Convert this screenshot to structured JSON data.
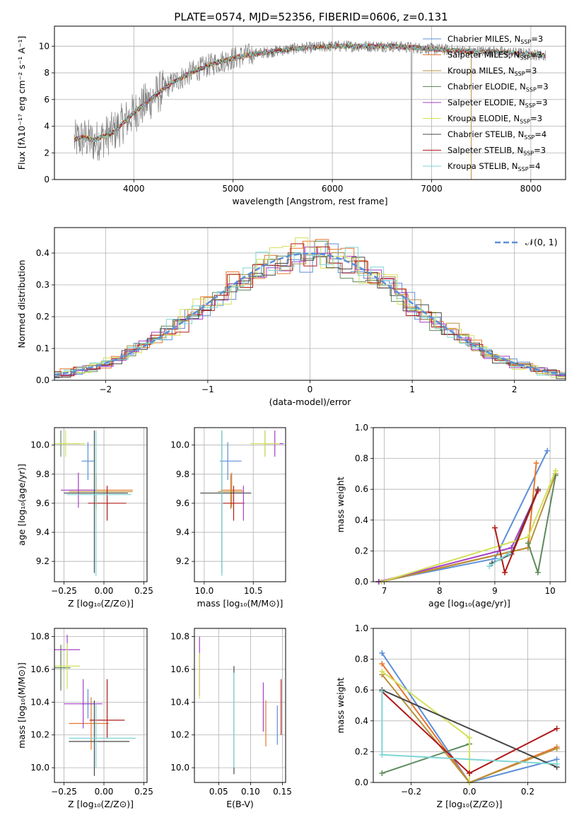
{
  "figure_title": "PLATE=0574, MJD=52356, FIBERID=0606, z=0.131",
  "colors": {
    "chabrier_miles": "#5b8fd8",
    "salpeter_miles": "#e6772e",
    "kroupa_miles": "#b8923a",
    "chabrier_elodie": "#5d8a5d",
    "salpeter_elodie": "#a53dc7",
    "kroupa_elodie": "#d4e05a",
    "chabrier_stelib": "#474747",
    "salpeter_stelib": "#b01a1a",
    "kroupa_stelib": "#7fd6d6",
    "data": "#7f7f7f",
    "gauss": "#5b8fd8",
    "grid": "#b0b0b0"
  },
  "chart_data": [
    {
      "id": "spectrum",
      "type": "line",
      "xlabel": "wavelength [Angstrom, rest frame]",
      "ylabel": "Flux [fλ10⁻¹⁷ erg cm⁻² s⁻¹ A⁻¹]",
      "xlim": [
        3200,
        8350
      ],
      "ylim": [
        0,
        11.5
      ],
      "xticks": [
        "4000",
        "5000",
        "6000",
        "7000",
        "8000"
      ],
      "yticks": [
        "0",
        "2",
        "4",
        "6",
        "8",
        "10"
      ],
      "legend_position": "top-right",
      "legend": [
        "Chabrier MILES, N_SSP=3",
        "Salpeter MILES, N_SSP=3",
        "Kroupa MILES, N_SSP=3",
        "Chabrier ELODIE, N_SSP=3",
        "Salpeter ELODIE, N_SSP=3",
        "Kroupa ELODIE, N_SSP=3",
        "Chabrier STELIB, N_SSP=4",
        "Salpeter STELIB, N_SSP=3",
        "Kroupa STELIB, N_SSP=4"
      ],
      "continuum": [
        [
          3400,
          2.9
        ],
        [
          3500,
          3.1
        ],
        [
          3600,
          2.8
        ],
        [
          3700,
          3.2
        ],
        [
          3800,
          3.6
        ],
        [
          3900,
          4.3
        ],
        [
          4000,
          5.0
        ],
        [
          4100,
          5.6
        ],
        [
          4200,
          6.2
        ],
        [
          4300,
          6.8
        ],
        [
          4400,
          7.3
        ],
        [
          4500,
          7.7
        ],
        [
          4600,
          8.1
        ],
        [
          4700,
          8.4
        ],
        [
          4800,
          8.7
        ],
        [
          4900,
          8.9
        ],
        [
          5000,
          9.1
        ],
        [
          5200,
          9.4
        ],
        [
          5400,
          9.6
        ],
        [
          5600,
          9.8
        ],
        [
          5800,
          9.9
        ],
        [
          6000,
          10.0
        ],
        [
          6200,
          10.0
        ],
        [
          6400,
          10.0
        ],
        [
          6600,
          10.0
        ],
        [
          6800,
          9.9
        ],
        [
          7000,
          9.8
        ],
        [
          7200,
          9.7
        ],
        [
          7400,
          9.6
        ],
        [
          7600,
          9.6
        ],
        [
          7800,
          9.5
        ],
        [
          8000,
          9.4
        ],
        [
          8150,
          9.3
        ]
      ]
    },
    {
      "id": "residuals",
      "type": "bar",
      "xlabel": "(data-model)/error",
      "ylabel": "Normed distribution",
      "xlim": [
        -2.5,
        2.5
      ],
      "ylim": [
        0,
        0.48
      ],
      "xticks": [
        "−2",
        "−1",
        "0",
        "1",
        "2"
      ],
      "yticks": [
        "0.0",
        "0.1",
        "0.2",
        "0.3",
        "0.4"
      ],
      "legend_position": "top-right",
      "legend": [
        "𝒩(0, 1)"
      ],
      "bin_width": 0.125
    },
    {
      "id": "age_vs_z",
      "type": "scatter",
      "xlabel": "Z [log₁₀(Z/Z⊙)]",
      "ylabel": "age  [log₁₀(age/yr)]",
      "xlim": [
        -0.31,
        0.27
      ],
      "ylim": [
        9.06,
        10.12
      ],
      "xticks": [
        "−0.25",
        "0.00",
        "0.25"
      ],
      "yticks": [
        "9.2",
        "9.4",
        "9.6",
        "9.8",
        "10.0"
      ],
      "points": [
        {
          "x": -0.1,
          "y": 9.89,
          "xerr": [
            0.04,
            0.04
          ],
          "yerr": [
            0.13,
            0.13
          ],
          "c": "chabrier_miles"
        },
        {
          "x": -0.05,
          "y": 9.69,
          "xerr": [
            0.17,
            0.23
          ],
          "yerr": [
            0.12,
            0.12
          ],
          "c": "salpeter_miles"
        },
        {
          "x": -0.05,
          "y": 9.68,
          "xerr": [
            0.17,
            0.23
          ],
          "yerr": [
            0.12,
            0.12
          ],
          "c": "kroupa_miles"
        },
        {
          "x": -0.27,
          "y": 10.01,
          "xerr": [
            0.07,
            0.12
          ],
          "yerr": [
            0.09,
            0.09
          ],
          "c": "chabrier_elodie"
        },
        {
          "x": -0.16,
          "y": 9.69,
          "xerr": [
            0.11,
            0.11
          ],
          "yerr": [
            0.12,
            0.12
          ],
          "c": "salpeter_elodie"
        },
        {
          "x": -0.24,
          "y": 10.01,
          "xerr": [
            0.07,
            0.12
          ],
          "yerr": [
            0.09,
            0.09
          ],
          "c": "kroupa_elodie"
        },
        {
          "x": -0.06,
          "y": 9.67,
          "xerr": [
            0.19,
            0.21
          ],
          "yerr": [
            0.55,
            0.43
          ],
          "c": "chabrier_stelib"
        },
        {
          "x": 0.02,
          "y": 9.6,
          "xerr": [
            0.12,
            0.12
          ],
          "yerr": [
            0.12,
            0.12
          ],
          "c": "salpeter_stelib"
        },
        {
          "x": -0.05,
          "y": 9.66,
          "xerr": [
            0.18,
            0.22
          ],
          "yerr": [
            0.56,
            0.44
          ],
          "c": "kroupa_stelib"
        }
      ]
    },
    {
      "id": "age_vs_mass",
      "type": "scatter",
      "xlabel": "mass [log₁₀(M/M⊙)]",
      "ylabel": "",
      "xlim": [
        9.9,
        10.83
      ],
      "ylim": [
        9.06,
        10.12
      ],
      "xticks": [
        "10.0",
        "10.5"
      ],
      "yticks": [
        "9.2",
        "9.4",
        "9.6",
        "9.8",
        "10.0"
      ],
      "points": [
        {
          "x": 10.24,
          "y": 9.89,
          "xerr": [
            0.08,
            0.14
          ],
          "yerr": [
            0.13,
            0.13
          ],
          "c": "chabrier_miles"
        },
        {
          "x": 10.28,
          "y": 9.69,
          "xerr": [
            0.11,
            0.11
          ],
          "yerr": [
            0.12,
            0.12
          ],
          "c": "salpeter_miles"
        },
        {
          "x": 10.27,
          "y": 9.68,
          "xerr": [
            0.13,
            0.13
          ],
          "yerr": [
            0.12,
            0.12
          ],
          "c": "kroupa_miles"
        },
        {
          "x": 10.62,
          "y": 10.01,
          "xerr": [
            0.01,
            0.01
          ],
          "yerr": [
            0.09,
            0.09
          ],
          "c": "chabrier_elodie"
        },
        {
          "x": 10.72,
          "y": 10.01,
          "xerr": [
            0.09,
            0.09
          ],
          "yerr": [
            0.09,
            0.09
          ],
          "c": "salpeter_elodie"
        },
        {
          "x": 10.62,
          "y": 10.01,
          "xerr": [
            0.15,
            0.15
          ],
          "yerr": [
            0.09,
            0.09
          ],
          "c": "kroupa_elodie"
        },
        {
          "x": 10.18,
          "y": 9.67,
          "xerr": [
            0.22,
            0.3
          ],
          "yerr": [
            0.55,
            0.43
          ],
          "c": "chabrier_stelib"
        },
        {
          "x": 10.3,
          "y": 9.6,
          "xerr": [
            0.11,
            0.11
          ],
          "yerr": [
            0.12,
            0.12
          ],
          "c": "salpeter_stelib"
        },
        {
          "x": 10.18,
          "y": 9.66,
          "xerr": [
            0.01,
            0.01
          ],
          "yerr": [
            0.56,
            0.44
          ],
          "c": "kroupa_stelib"
        },
        {
          "x": 10.4,
          "y": 9.6,
          "xerr": [
            0.01,
            0.01
          ],
          "yerr": [
            0.12,
            0.12
          ],
          "c": "salpeter_elodie"
        }
      ]
    },
    {
      "id": "weight_vs_age",
      "type": "line",
      "xlabel": "age  [log₁₀(age/yr)]",
      "ylabel": "mass weight",
      "xlim": [
        6.8,
        10.28
      ],
      "ylim": [
        0,
        1
      ],
      "xticks": [
        "7",
        "8",
        "9",
        "10"
      ],
      "yticks": [
        "0.0",
        "0.2",
        "0.4",
        "0.6",
        "0.8",
        "1.0"
      ],
      "series": [
        {
          "c": "chabrier_miles",
          "x": [
            6.9,
            9.0,
            9.95
          ],
          "y": [
            0.0,
            0.15,
            0.85
          ]
        },
        {
          "c": "salpeter_miles",
          "x": [
            6.9,
            9.6,
            9.75
          ],
          "y": [
            0.0,
            0.22,
            0.77
          ]
        },
        {
          "c": "kroupa_miles",
          "x": [
            6.95,
            9.6,
            10.1
          ],
          "y": [
            0.0,
            0.22,
            0.7
          ]
        },
        {
          "c": "chabrier_elodie",
          "x": [
            9.6,
            9.78,
            10.1
          ],
          "y": [
            0.25,
            0.06,
            0.69
          ]
        },
        {
          "c": "salpeter_elodie",
          "x": [
            6.9,
            9.3,
            9.78
          ],
          "y": [
            0.0,
            0.22,
            0.59
          ]
        },
        {
          "c": "kroupa_elodie",
          "x": [
            6.95,
            9.6,
            10.1
          ],
          "y": [
            0.0,
            0.29,
            0.72
          ]
        },
        {
          "c": "chabrier_stelib",
          "x": [
            8.95,
            9.3,
            9.78
          ],
          "y": [
            0.12,
            0.18,
            0.6
          ]
        },
        {
          "c": "salpeter_stelib",
          "x": [
            9.0,
            9.18,
            9.78
          ],
          "y": [
            0.35,
            0.06,
            0.59
          ]
        },
        {
          "c": "kroupa_stelib",
          "x": [
            8.9,
            9.1,
            9.25
          ],
          "y": [
            0.1,
            0.15,
            0.18
          ]
        }
      ]
    },
    {
      "id": "mass_vs_z",
      "type": "scatter",
      "xlabel": "Z [log₁₀(Z/Z⊙)]",
      "ylabel": "mass [log₁₀(M/M⊙)]",
      "xlim": [
        -0.31,
        0.27
      ],
      "ylim": [
        9.91,
        10.85
      ],
      "xticks": [
        "−0.25",
        "0.00",
        "0.25"
      ],
      "yticks": [
        "10.0",
        "10.2",
        "10.4",
        "10.6",
        "10.8"
      ],
      "points": [
        {
          "x": -0.1,
          "y": 10.39,
          "xerr": [
            0.04,
            0.04
          ],
          "yerr": [
            0.09,
            0.09
          ],
          "c": "chabrier_miles"
        },
        {
          "x": -0.08,
          "y": 10.27,
          "xerr": [
            0.14,
            0.11
          ],
          "yerr": [
            0.16,
            0.16
          ],
          "c": "salpeter_miles"
        },
        {
          "x": -0.27,
          "y": 10.61,
          "xerr": [
            0.06,
            0.06
          ],
          "yerr": [
            0.13,
            0.13
          ],
          "c": "kroupa_miles"
        },
        {
          "x": -0.27,
          "y": 10.61,
          "xerr": [
            0.06,
            0.06
          ],
          "yerr": [
            0.14,
            0.14
          ],
          "c": "chabrier_elodie"
        },
        {
          "x": -0.23,
          "y": 10.72,
          "xerr": [
            0.08,
            0.08
          ],
          "yerr": [
            0.09,
            0.09
          ],
          "c": "salpeter_elodie"
        },
        {
          "x": -0.23,
          "y": 10.62,
          "xerr": [
            0.08,
            0.08
          ],
          "yerr": [
            0.14,
            0.14
          ],
          "c": "kroupa_elodie"
        },
        {
          "x": -0.13,
          "y": 10.39,
          "xerr": [
            0.12,
            0.12
          ],
          "yerr": [
            0.15,
            0.15
          ],
          "c": "salpeter_elodie"
        },
        {
          "x": -0.06,
          "y": 10.16,
          "xerr": [
            0.16,
            0.22
          ],
          "yerr": [
            0.21,
            0.25
          ],
          "c": "chabrier_stelib"
        },
        {
          "x": 0.02,
          "y": 10.29,
          "xerr": [
            0.11,
            0.11
          ],
          "yerr": [
            0.11,
            0.25
          ],
          "c": "salpeter_stelib"
        },
        {
          "x": -0.05,
          "y": 10.18,
          "xerr": [
            0.17,
            0.25
          ],
          "yerr": [
            0.18,
            0.21
          ],
          "c": "kroupa_stelib"
        }
      ]
    },
    {
      "id": "mass_vs_ebv",
      "type": "scatter",
      "xlabel": "E(B-V)",
      "ylabel": "",
      "xlim": [
        0.012,
        0.155
      ],
      "ylim": [
        9.91,
        10.85
      ],
      "xticks": [
        "0.05",
        "0.10",
        "0.15"
      ],
      "yticks": [
        "10.0",
        "10.2",
        "10.4",
        "10.6",
        "10.8"
      ],
      "points": [
        {
          "x": 0.142,
          "y": 10.26,
          "xerr": [
            0,
            0
          ],
          "yerr": [
            0.12,
            0.12
          ],
          "c": "chabrier_miles"
        },
        {
          "x": 0.124,
          "y": 10.27,
          "xerr": [
            0,
            0
          ],
          "yerr": [
            0.14,
            0.14
          ],
          "c": "salpeter_miles"
        },
        {
          "x": 0.02,
          "y": 10.62,
          "xerr": [
            0,
            0
          ],
          "yerr": [
            0.18,
            0.18
          ],
          "c": "salpeter_elodie"
        },
        {
          "x": 0.02,
          "y": 10.56,
          "xerr": [
            0,
            0
          ],
          "yerr": [
            0.14,
            0.14
          ],
          "c": "kroupa_elodie"
        },
        {
          "x": 0.074,
          "y": 10.29,
          "xerr": [
            0,
            0
          ],
          "yerr": [
            0.33,
            0.33
          ],
          "c": "chabrier_stelib"
        },
        {
          "x": 0.148,
          "y": 10.37,
          "xerr": [
            0,
            0
          ],
          "yerr": [
            0.17,
            0.17
          ],
          "c": "salpeter_stelib"
        },
        {
          "x": 0.074,
          "y": 10.29,
          "xerr": [
            0,
            0
          ],
          "yerr": [
            0.29,
            0.29
          ],
          "c": "kroupa_stelib"
        },
        {
          "x": 0.12,
          "y": 10.37,
          "xerr": [
            0,
            0
          ],
          "yerr": [
            0.15,
            0.15
          ],
          "c": "salpeter_elodie"
        }
      ]
    },
    {
      "id": "weight_vs_z",
      "type": "line",
      "xlabel": "Z [log₁₀(Z/Z⊙)]",
      "ylabel": "mass weight",
      "xlim": [
        -0.33,
        0.33
      ],
      "ylim": [
        0,
        1
      ],
      "xticks": [
        "−0.2",
        "0.0",
        "0.2"
      ],
      "yticks": [
        "0.0",
        "0.2",
        "0.4",
        "0.6",
        "0.8",
        "1.0"
      ],
      "series": [
        {
          "c": "chabrier_miles",
          "x": [
            -0.3,
            0.0,
            0.3
          ],
          "y": [
            0.84,
            0.0,
            0.15
          ]
        },
        {
          "c": "salpeter_miles",
          "x": [
            -0.3,
            0.0,
            0.3
          ],
          "y": [
            0.77,
            0.0,
            0.23
          ]
        },
        {
          "c": "kroupa_miles",
          "x": [
            -0.3,
            0.0,
            0.3
          ],
          "y": [
            0.7,
            0.0,
            0.22
          ]
        },
        {
          "c": "chabrier_elodie",
          "x": [
            -0.3,
            0.0
          ],
          "y": [
            0.06,
            0.25
          ]
        },
        {
          "c": "kroupa_elodie",
          "x": [
            -0.3,
            0.0,
            0.0
          ],
          "y": [
            0.72,
            0.29,
            0.0
          ]
        },
        {
          "c": "chabrier_stelib",
          "x": [
            -0.3,
            0.3
          ],
          "y": [
            0.6,
            0.1
          ]
        },
        {
          "c": "salpeter_stelib",
          "x": [
            -0.3,
            0.0,
            0.3
          ],
          "y": [
            0.59,
            0.06,
            0.35
          ]
        },
        {
          "c": "kroupa_stelib",
          "x": [
            -0.3,
            -0.3,
            0.3
          ],
          "y": [
            0.59,
            0.18,
            0.12
          ]
        }
      ]
    }
  ]
}
